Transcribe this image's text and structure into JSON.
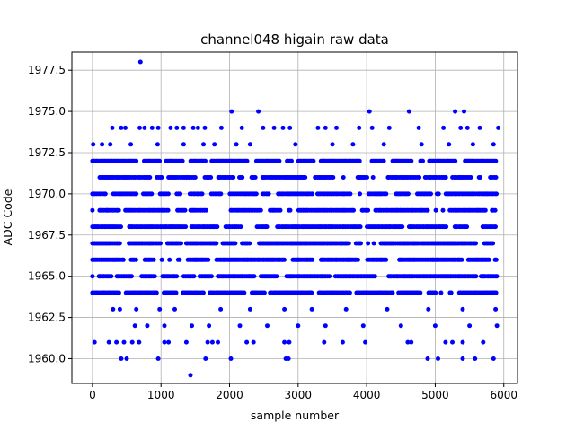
{
  "chart_data": {
    "type": "scatter",
    "title": "channel048 higain raw data",
    "xlabel": "sample number",
    "ylabel": "ADC Code",
    "xlim": [
      -300,
      6200
    ],
    "ylim": [
      1958.5,
      1978.6
    ],
    "x_ticks": [
      0,
      1000,
      2000,
      3000,
      4000,
      5000,
      6000
    ],
    "x_tick_labels": [
      "0",
      "1000",
      "2000",
      "3000",
      "4000",
      "5000",
      "6000"
    ],
    "y_ticks": [
      1960.0,
      1962.5,
      1965.0,
      1967.5,
      1970.0,
      1972.5,
      1975.0,
      1977.5
    ],
    "y_tick_labels": [
      "1960.0",
      "1962.5",
      "1965.0",
      "1967.5",
      "1970.0",
      "1972.5",
      "1975.0",
      "1977.5"
    ],
    "grid": true,
    "marker_color": "#0000ff",
    "series": [
      {
        "dense_levels": [
          1964,
          1965,
          1966,
          1967,
          1968,
          1969,
          1970,
          1971,
          1972
        ],
        "x_range": [
          0,
          5900
        ],
        "sparse_points": [
          {
            "x": 700,
            "y": 1978
          },
          {
            "x": 2030,
            "y": 1975
          },
          {
            "x": 2420,
            "y": 1975
          },
          {
            "x": 4040,
            "y": 1975
          },
          {
            "x": 4620,
            "y": 1975
          },
          {
            "x": 5290,
            "y": 1975
          },
          {
            "x": 5420,
            "y": 1975
          },
          {
            "x": 290,
            "y": 1974
          },
          {
            "x": 420,
            "y": 1974
          },
          {
            "x": 480,
            "y": 1974
          },
          {
            "x": 690,
            "y": 1974
          },
          {
            "x": 760,
            "y": 1974
          },
          {
            "x": 870,
            "y": 1974
          },
          {
            "x": 960,
            "y": 1974
          },
          {
            "x": 1140,
            "y": 1974
          },
          {
            "x": 1230,
            "y": 1974
          },
          {
            "x": 1330,
            "y": 1974
          },
          {
            "x": 1470,
            "y": 1974
          },
          {
            "x": 1540,
            "y": 1974
          },
          {
            "x": 1640,
            "y": 1974
          },
          {
            "x": 1880,
            "y": 1974
          },
          {
            "x": 2180,
            "y": 1974
          },
          {
            "x": 2490,
            "y": 1974
          },
          {
            "x": 2650,
            "y": 1974
          },
          {
            "x": 2780,
            "y": 1974
          },
          {
            "x": 2880,
            "y": 1974
          },
          {
            "x": 3290,
            "y": 1974
          },
          {
            "x": 3400,
            "y": 1974
          },
          {
            "x": 3560,
            "y": 1974
          },
          {
            "x": 3890,
            "y": 1974
          },
          {
            "x": 4080,
            "y": 1974
          },
          {
            "x": 4330,
            "y": 1974
          },
          {
            "x": 4760,
            "y": 1974
          },
          {
            "x": 5120,
            "y": 1974
          },
          {
            "x": 5370,
            "y": 1974
          },
          {
            "x": 5470,
            "y": 1974
          },
          {
            "x": 5650,
            "y": 1974
          },
          {
            "x": 5920,
            "y": 1974
          },
          {
            "x": 10,
            "y": 1973
          },
          {
            "x": 140,
            "y": 1973
          },
          {
            "x": 260,
            "y": 1973
          },
          {
            "x": 560,
            "y": 1973
          },
          {
            "x": 950,
            "y": 1973
          },
          {
            "x": 1330,
            "y": 1973
          },
          {
            "x": 1620,
            "y": 1973
          },
          {
            "x": 1780,
            "y": 1973
          },
          {
            "x": 2100,
            "y": 1973
          },
          {
            "x": 2300,
            "y": 1973
          },
          {
            "x": 2960,
            "y": 1973
          },
          {
            "x": 3500,
            "y": 1973
          },
          {
            "x": 3800,
            "y": 1973
          },
          {
            "x": 4250,
            "y": 1973
          },
          {
            "x": 4800,
            "y": 1973
          },
          {
            "x": 5200,
            "y": 1973
          },
          {
            "x": 5550,
            "y": 1973
          },
          {
            "x": 5850,
            "y": 1973
          },
          {
            "x": 300,
            "y": 1963
          },
          {
            "x": 400,
            "y": 1963
          },
          {
            "x": 640,
            "y": 1963
          },
          {
            "x": 980,
            "y": 1963
          },
          {
            "x": 1200,
            "y": 1963
          },
          {
            "x": 1870,
            "y": 1963
          },
          {
            "x": 2300,
            "y": 1963
          },
          {
            "x": 2800,
            "y": 1963
          },
          {
            "x": 3200,
            "y": 1963
          },
          {
            "x": 3700,
            "y": 1963
          },
          {
            "x": 4300,
            "y": 1963
          },
          {
            "x": 4900,
            "y": 1963
          },
          {
            "x": 5400,
            "y": 1963
          },
          {
            "x": 5880,
            "y": 1963
          },
          {
            "x": 620,
            "y": 1962
          },
          {
            "x": 800,
            "y": 1962
          },
          {
            "x": 1050,
            "y": 1962
          },
          {
            "x": 1450,
            "y": 1962
          },
          {
            "x": 1700,
            "y": 1962
          },
          {
            "x": 2150,
            "y": 1962
          },
          {
            "x": 2550,
            "y": 1962
          },
          {
            "x": 3000,
            "y": 1962
          },
          {
            "x": 3400,
            "y": 1962
          },
          {
            "x": 3950,
            "y": 1962
          },
          {
            "x": 4500,
            "y": 1962
          },
          {
            "x": 5000,
            "y": 1962
          },
          {
            "x": 5500,
            "y": 1962
          },
          {
            "x": 5900,
            "y": 1962
          },
          {
            "x": 30,
            "y": 1961
          },
          {
            "x": 240,
            "y": 1961
          },
          {
            "x": 350,
            "y": 1961
          },
          {
            "x": 460,
            "y": 1961
          },
          {
            "x": 580,
            "y": 1961
          },
          {
            "x": 680,
            "y": 1961
          },
          {
            "x": 1050,
            "y": 1961
          },
          {
            "x": 1110,
            "y": 1961
          },
          {
            "x": 1370,
            "y": 1961
          },
          {
            "x": 1680,
            "y": 1961
          },
          {
            "x": 1750,
            "y": 1961
          },
          {
            "x": 1830,
            "y": 1961
          },
          {
            "x": 2250,
            "y": 1961
          },
          {
            "x": 2350,
            "y": 1961
          },
          {
            "x": 2800,
            "y": 1961
          },
          {
            "x": 2870,
            "y": 1961
          },
          {
            "x": 3380,
            "y": 1961
          },
          {
            "x": 3650,
            "y": 1961
          },
          {
            "x": 3980,
            "y": 1961
          },
          {
            "x": 4600,
            "y": 1961
          },
          {
            "x": 4650,
            "y": 1961
          },
          {
            "x": 5150,
            "y": 1961
          },
          {
            "x": 5250,
            "y": 1961
          },
          {
            "x": 5400,
            "y": 1961
          },
          {
            "x": 5700,
            "y": 1961
          },
          {
            "x": 420,
            "y": 1960
          },
          {
            "x": 500,
            "y": 1960
          },
          {
            "x": 960,
            "y": 1960
          },
          {
            "x": 1650,
            "y": 1960
          },
          {
            "x": 2020,
            "y": 1960
          },
          {
            "x": 2820,
            "y": 1960
          },
          {
            "x": 2860,
            "y": 1960
          },
          {
            "x": 4890,
            "y": 1960
          },
          {
            "x": 5040,
            "y": 1960
          },
          {
            "x": 5400,
            "y": 1960
          },
          {
            "x": 5580,
            "y": 1960
          },
          {
            "x": 5850,
            "y": 1960
          },
          {
            "x": 1430,
            "y": 1959
          }
        ]
      }
    ]
  }
}
